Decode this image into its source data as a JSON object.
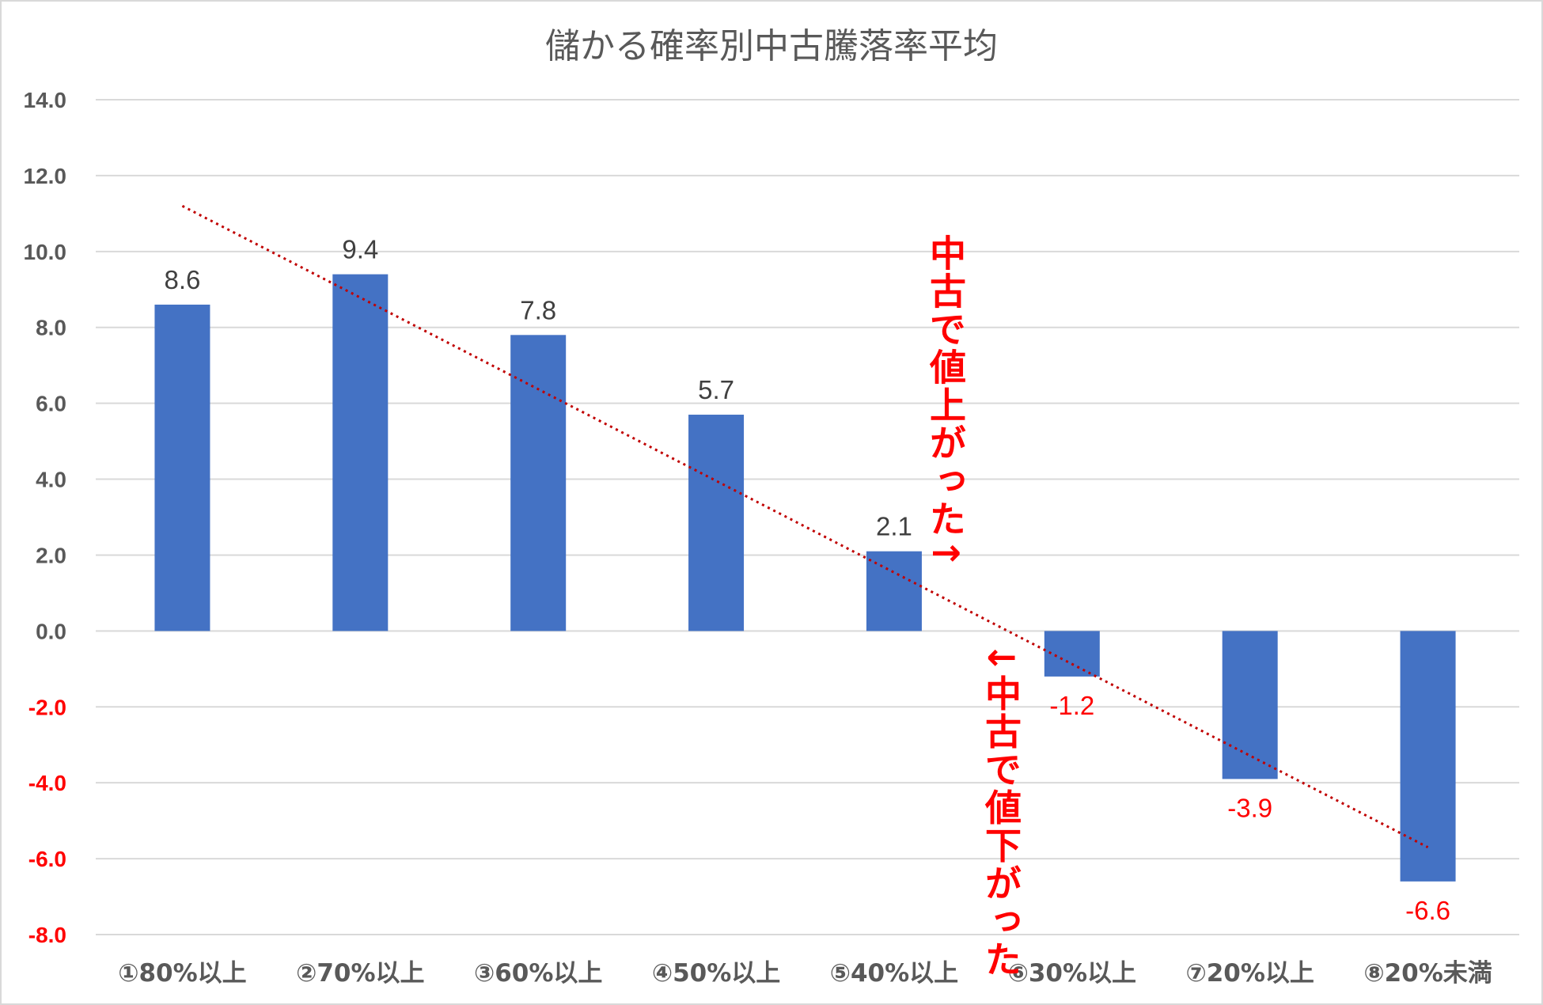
{
  "chart_data": {
    "type": "bar",
    "title": "儲かる確率別中古騰落率平均",
    "categories": [
      "①80%以上",
      "②70%以上",
      "③60%以上",
      "④50%以上",
      "⑤40%以上",
      "⑥30%以上",
      "⑦20%以上",
      "⑧20%未満"
    ],
    "values": [
      8.6,
      9.4,
      7.8,
      5.7,
      2.1,
      -1.2,
      -3.9,
      -6.6
    ],
    "data_labels": [
      "8.6",
      "9.4",
      "7.8",
      "5.7",
      "2.1",
      "-1.2",
      "-3.9",
      "-6.6"
    ],
    "ylim": [
      -8,
      14
    ],
    "yticks": [
      "14.0",
      "12.0",
      "10.0",
      "8.0",
      "6.0",
      "4.0",
      "2.0",
      "0.0",
      "-2.0",
      "-4.0",
      "-6.0",
      "-8.0"
    ],
    "ytick_values": [
      14,
      12,
      10,
      8,
      6,
      4,
      2,
      0,
      -2,
      -4,
      -6,
      -8
    ],
    "grid": true,
    "trendline": {
      "type": "linear",
      "style": "dotted",
      "color": "#c00000",
      "start": 11.2,
      "end": -5.7
    },
    "colors": {
      "bar": "#4472c4",
      "positive_label": "#404040",
      "negative_label": "#ff0000",
      "negative_tick": "#ff0000",
      "tick": "#595959"
    },
    "annotations": {
      "up": "中古で値上がった↑",
      "down": "↓中古で値下がった"
    }
  }
}
